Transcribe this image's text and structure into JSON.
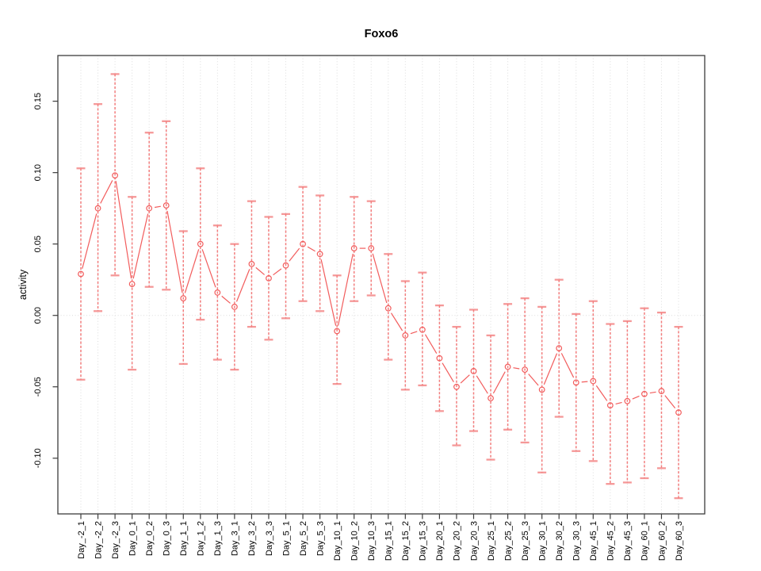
{
  "chart_data": {
    "type": "line",
    "title": "Foxo6",
    "xlabel": "",
    "ylabel": "activity",
    "legend": "none",
    "grid": {
      "vertical_dotted_gridlines": true,
      "zero_line_dotted": true
    },
    "marker": "open-circle",
    "categories": [
      "Day_-2_1",
      "Day_-2_2",
      "Day_-2_3",
      "Day_0_1",
      "Day_0_2",
      "Day_0_3",
      "Day_1_1",
      "Day_1_2",
      "Day_1_3",
      "Day_3_1",
      "Day_3_2",
      "Day_3_3",
      "Day_5_1",
      "Day_5_2",
      "Day_5_3",
      "Day_10_1",
      "Day_10_2",
      "Day_10_3",
      "Day_15_1",
      "Day_15_2",
      "Day_15_3",
      "Day_20_1",
      "Day_20_2",
      "Day_20_3",
      "Day_25_1",
      "Day_25_2",
      "Day_25_3",
      "Day_30_1",
      "Day_30_2",
      "Day_30_3",
      "Day_45_1",
      "Day_45_2",
      "Day_45_3",
      "Day_60_1",
      "Day_60_2",
      "Day_60_3"
    ],
    "series": [
      {
        "name": "activity",
        "values": [
          0.029,
          0.075,
          0.098,
          0.022,
          0.075,
          0.077,
          0.012,
          0.05,
          0.016,
          0.006,
          0.036,
          0.026,
          0.035,
          0.05,
          0.043,
          -0.011,
          0.047,
          0.047,
          0.005,
          -0.014,
          -0.01,
          -0.03,
          -0.05,
          -0.039,
          -0.058,
          -0.036,
          -0.038,
          -0.052,
          -0.023,
          -0.047,
          -0.046,
          -0.063,
          -0.06,
          -0.055,
          -0.053,
          -0.068
        ],
        "error_low": [
          -0.045,
          0.003,
          0.028,
          -0.038,
          0.02,
          0.018,
          -0.034,
          -0.003,
          -0.031,
          -0.038,
          -0.008,
          -0.017,
          -0.002,
          0.01,
          0.003,
          -0.048,
          0.01,
          0.014,
          -0.031,
          -0.052,
          -0.049,
          -0.067,
          -0.091,
          -0.081,
          -0.101,
          -0.08,
          -0.089,
          -0.11,
          -0.071,
          -0.095,
          -0.102,
          -0.118,
          -0.117,
          -0.114,
          -0.107,
          -0.128
        ],
        "error_high": [
          0.103,
          0.148,
          0.169,
          0.083,
          0.128,
          0.136,
          0.059,
          0.103,
          0.063,
          0.05,
          0.08,
          0.069,
          0.071,
          0.09,
          0.084,
          0.028,
          0.083,
          0.08,
          0.043,
          0.024,
          0.03,
          0.007,
          -0.008,
          0.004,
          -0.014,
          0.008,
          0.012,
          0.006,
          0.025,
          0.001,
          0.01,
          -0.006,
          -0.004,
          0.005,
          0.002,
          -0.008
        ]
      }
    ],
    "yticks": [
      -0.1,
      -0.05,
      0.0,
      0.05,
      0.1,
      0.15
    ],
    "ytick_labels": [
      "-0.10",
      "-0.05",
      "0.00",
      "0.05",
      "0.10",
      "0.15"
    ],
    "ylim": [
      -0.139,
      0.182
    ],
    "colors": {
      "line": "#f25c5c",
      "marker": "#f25c5c",
      "error_bar": "#f26868",
      "error_cap": "#f37f7f",
      "grid": "#dcdcdc",
      "axis": "#3c3c3c",
      "text": "#000000"
    }
  }
}
